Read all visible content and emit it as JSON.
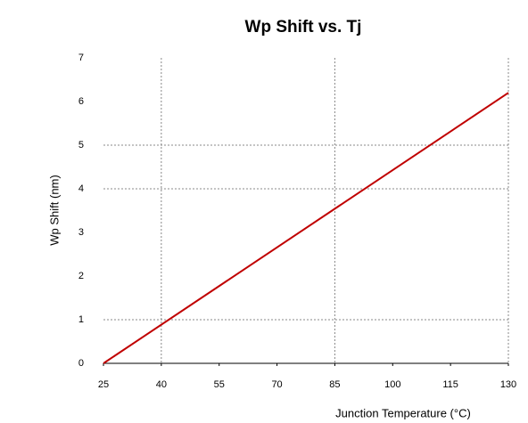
{
  "chart_data": {
    "type": "line",
    "title": "Wp Shift vs. Tj",
    "x_label": "Junction Temperature (°C)",
    "y_label": "Wp Shift  (nm)",
    "x": [
      25,
      130
    ],
    "values": [
      0,
      6.2
    ],
    "color": "#c00000",
    "xlim": [
      25,
      130
    ],
    "xticks": [
      25,
      40,
      55,
      70,
      85,
      100,
      115,
      130
    ],
    "ylim": [
      0,
      7
    ],
    "yticks": [
      0,
      1,
      2,
      3,
      4,
      5,
      6,
      7
    ],
    "xgrid": [
      40,
      85,
      130
    ],
    "ygrid": [
      1,
      4,
      5
    ]
  }
}
